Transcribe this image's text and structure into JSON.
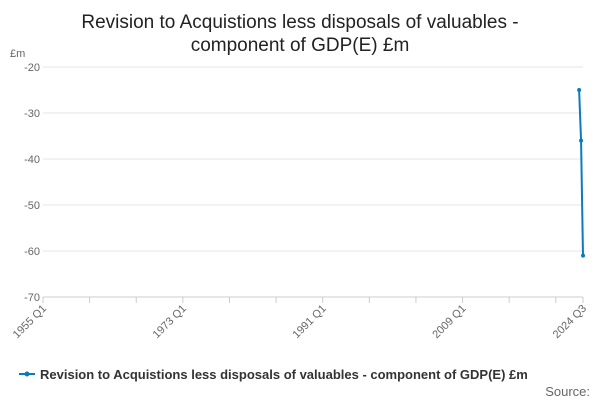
{
  "chart_data": {
    "type": "line",
    "title_lines": [
      "Revision to Acquistions less disposals of valuables -",
      "component of GDP(E) £m"
    ],
    "y_unit": "£m",
    "ylim": [
      -70,
      -20
    ],
    "y_ticks": [
      -20,
      -30,
      -40,
      -50,
      -60,
      -70
    ],
    "x_tick_labels": [
      "1955 Q1",
      "1973 Q1",
      "1991 Q1",
      "2009 Q1",
      "2024 Q3"
    ],
    "x_range": [
      "1955 Q1",
      "2024 Q3"
    ],
    "grid": "horizontal",
    "legend_position": "bottom",
    "series": [
      {
        "name": "Revision to Acquistions less disposals of valuables - component of GDP(E) £m",
        "color": "#0b7bbd",
        "points": [
          {
            "x": "2024 Q1",
            "y": -25
          },
          {
            "x": "2024 Q2",
            "y": -36
          },
          {
            "x": "2024 Q3",
            "y": -61
          }
        ]
      }
    ]
  },
  "footer": {
    "source_label": "Source:"
  }
}
